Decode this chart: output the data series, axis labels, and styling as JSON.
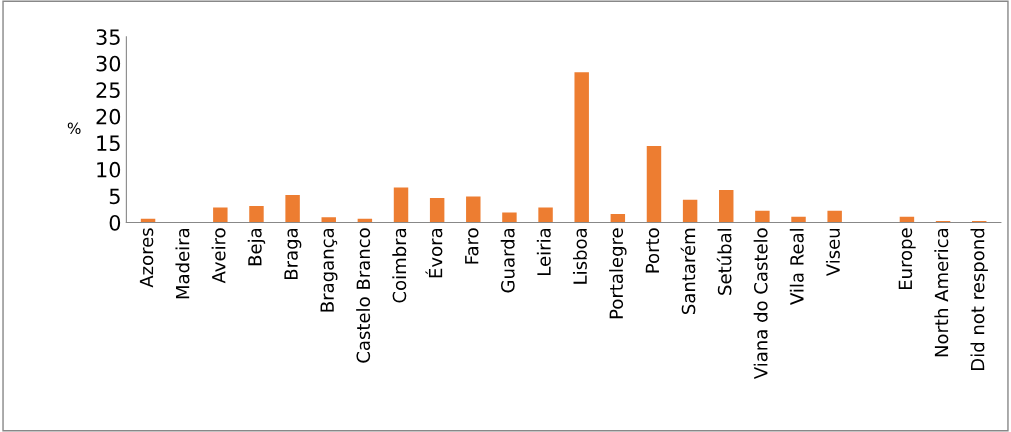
{
  "chart_data": {
    "type": "bar",
    "ylabel": "%",
    "categories": [
      "Azores",
      "Madeira",
      "Aveiro",
      "Beja",
      "Braga",
      "Bragança",
      "Castelo Branco",
      "Coimbra",
      "Évora",
      "Faro",
      "Guarda",
      "Leiria",
      "Lisboa",
      "Portalegre",
      "Porto",
      "Santarém",
      "Setúbal",
      "Viana do Castelo",
      "Vila Real",
      "Viseu",
      null,
      "Europe",
      "North America",
      "Did not respond"
    ],
    "values": [
      0.7,
      0,
      2.8,
      3.1,
      5.2,
      1.0,
      0.7,
      6.6,
      4.6,
      4.9,
      1.9,
      2.8,
      28.3,
      1.6,
      14.4,
      4.3,
      6.1,
      2.2,
      1.1,
      2.2,
      null,
      1.1,
      0.3,
      0.3
    ],
    "color": "#ed7d31",
    "ylim": [
      0,
      35
    ],
    "yticks": [
      0,
      5,
      10,
      15,
      20,
      25,
      30,
      35
    ],
    "grid": false,
    "legend": false
  }
}
